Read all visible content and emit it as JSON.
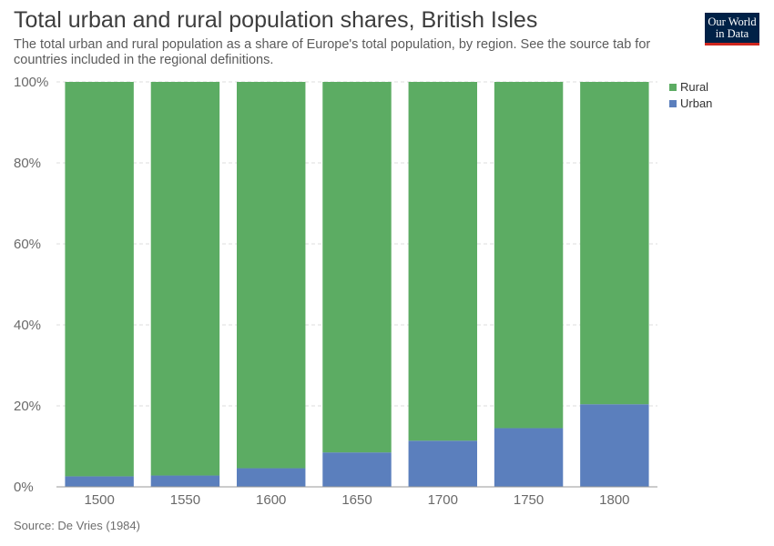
{
  "header": {
    "title": "Total urban and rural population shares, British Isles",
    "subtitle": "The total urban and rural population as a share of Europe's total population, by region. See the source tab for countries included in the regional definitions.",
    "logo_line1": "Our World",
    "logo_line2": "in Data"
  },
  "footer": {
    "source": "Source: De Vries (1984)"
  },
  "colors": {
    "rural": "#5cac63",
    "urban": "#5b7fbd"
  },
  "chart_data": {
    "type": "bar",
    "stacked": true,
    "categories": [
      "1500",
      "1550",
      "1600",
      "1650",
      "1700",
      "1750",
      "1800"
    ],
    "series": [
      {
        "name": "Urban",
        "values": [
          2.6,
          2.8,
          4.6,
          8.5,
          11.4,
          14.5,
          20.4
        ]
      },
      {
        "name": "Rural",
        "values": [
          97.4,
          97.2,
          95.4,
          91.5,
          88.6,
          85.5,
          79.6
        ]
      }
    ],
    "ylim": [
      0,
      100
    ],
    "y_ticks": [
      "0%",
      "20%",
      "40%",
      "60%",
      "80%",
      "100%"
    ],
    "grid": true,
    "legend": [
      "Rural",
      "Urban"
    ],
    "legend_position": "right"
  }
}
